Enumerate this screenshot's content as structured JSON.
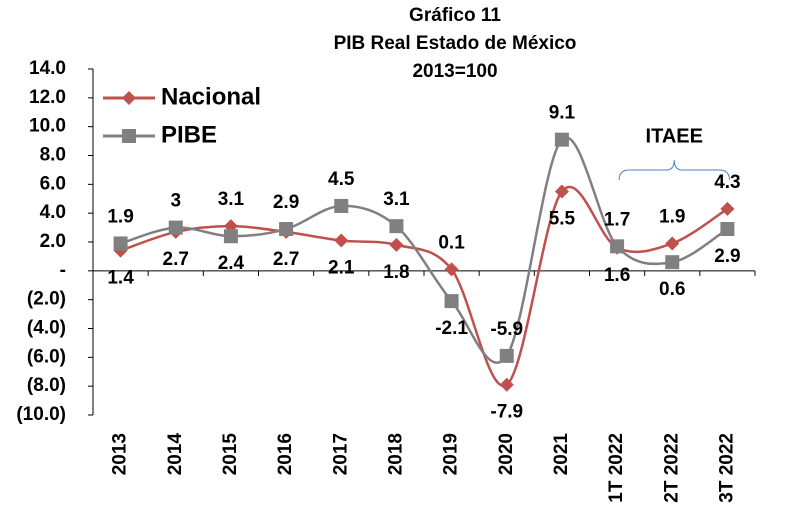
{
  "chart_data": {
    "type": "line",
    "title": "Gráfico 11",
    "subtitle": "PIB Real Estado de México",
    "subtitle2": "2013=100",
    "annotation": "ITAEE",
    "categories": [
      "2013",
      "2014",
      "2015",
      "2016",
      "2017",
      "2018",
      "2019",
      "2020",
      "2021",
      "1T 2022",
      "2T 2022",
      "3T 2022"
    ],
    "series": [
      {
        "name": "Nacional",
        "color": "#c0504d",
        "marker": "diamond",
        "values": [
          1.4,
          2.7,
          3.1,
          2.7,
          2.1,
          1.8,
          0.1,
          -7.9,
          5.5,
          1.6,
          1.9,
          4.3
        ]
      },
      {
        "name": "PIBE",
        "color": "#808080",
        "marker": "square",
        "values": [
          1.9,
          3,
          2.4,
          2.9,
          4.5,
          3.1,
          -2.1,
          -5.9,
          9.1,
          1.7,
          0.6,
          2.9
        ]
      }
    ],
    "ylim": [
      -10,
      14
    ],
    "yticks": [
      {
        "value": -10,
        "label": "(10.0)"
      },
      {
        "value": -8,
        "label": "(8.0)"
      },
      {
        "value": -6,
        "label": "(6.0)"
      },
      {
        "value": -4,
        "label": "(4.0)"
      },
      {
        "value": -2,
        "label": "(2.0)"
      },
      {
        "value": 0,
        "label": "-"
      },
      {
        "value": 2,
        "label": "2.0"
      },
      {
        "value": 4,
        "label": "4.0"
      },
      {
        "value": 6,
        "label": "6.0"
      },
      {
        "value": 8,
        "label": "8.0"
      },
      {
        "value": 10,
        "label": "10.0"
      },
      {
        "value": 12,
        "label": "12.0"
      },
      {
        "value": 14,
        "label": "14.0"
      }
    ],
    "grid": false,
    "legend": "top-left"
  }
}
